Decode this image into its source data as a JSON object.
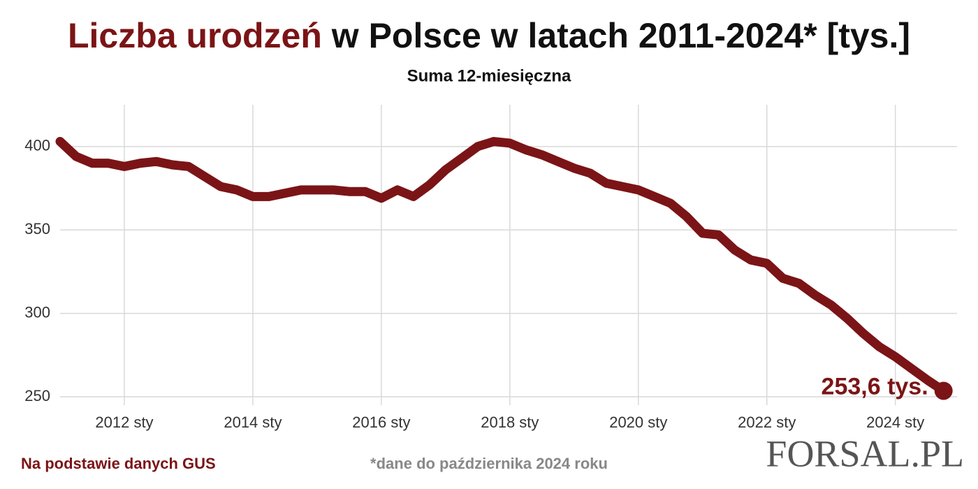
{
  "chart_data": {
    "type": "line",
    "title_highlight": "Liczba urodzeń",
    "title": "w Polsce w latach 2011-2024* [tys.]",
    "subtitle": "Suma 12-miesięczna",
    "source": "Na podstawie danych GUS",
    "note": "*dane do października 2024 roku",
    "logo": "FORSAL.PL",
    "x": [
      2011,
      2011.25,
      2011.5,
      2011.75,
      2012,
      2012.25,
      2012.5,
      2012.75,
      2013,
      2013.25,
      2013.5,
      2013.75,
      2014,
      2014.25,
      2014.5,
      2014.75,
      2015,
      2015.25,
      2015.5,
      2015.75,
      2016,
      2016.25,
      2016.5,
      2016.75,
      2017,
      2017.25,
      2017.5,
      2017.75,
      2018,
      2018.25,
      2018.5,
      2018.75,
      2019,
      2019.25,
      2019.5,
      2019.75,
      2020,
      2020.25,
      2020.5,
      2020.75,
      2021,
      2021.25,
      2021.5,
      2021.75,
      2022,
      2022.25,
      2022.5,
      2022.75,
      2023,
      2023.25,
      2023.5,
      2023.75,
      2024,
      2024.25,
      2024.5,
      2024.75
    ],
    "series": [
      {
        "name": "Liczba urodzeń",
        "color": "#7b1416",
        "values": [
          403,
          394,
          390,
          390,
          388,
          390,
          391,
          389,
          388,
          382,
          376,
          374,
          370,
          370,
          372,
          374,
          374,
          374,
          373,
          373,
          369,
          374,
          370,
          377,
          386,
          393,
          400,
          403,
          402,
          398,
          395,
          391,
          387,
          384,
          378,
          376,
          374,
          370,
          366,
          358,
          348,
          347,
          338,
          332,
          330,
          321,
          318,
          311,
          305,
          297,
          288,
          280,
          274,
          267,
          260,
          253.6
        ],
        "value_labels": [
          null,
          null,
          null,
          null,
          null,
          null,
          null,
          null,
          null,
          null,
          null,
          null,
          null,
          null,
          null,
          null,
          null,
          null,
          null,
          null,
          null,
          null,
          null,
          null,
          null,
          null,
          null,
          null,
          null,
          null,
          null,
          null,
          null,
          null,
          null,
          null,
          null,
          null,
          null,
          null,
          null,
          null,
          null,
          null,
          null,
          null,
          null,
          null,
          null,
          null,
          null,
          null,
          null,
          null,
          null,
          "253,6 tys."
        ]
      }
    ],
    "xlim": [
      2011,
      2024.96
    ],
    "xticks": [
      {
        "value": 2012,
        "label": "2012 sty"
      },
      {
        "value": 2014,
        "label": "2014 sty"
      },
      {
        "value": 2016,
        "label": "2016 sty"
      },
      {
        "value": 2018,
        "label": "2018 sty"
      },
      {
        "value": 2020,
        "label": "2020 sty"
      },
      {
        "value": 2022,
        "label": "2022 sty"
      },
      {
        "value": 2024,
        "label": "2024 sty"
      }
    ],
    "ylim": [
      245,
      425
    ],
    "yticks": [
      250,
      300,
      350,
      400
    ],
    "grid": true
  }
}
